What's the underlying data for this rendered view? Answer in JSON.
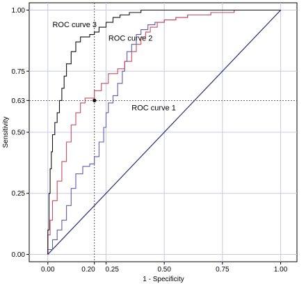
{
  "chart_data": {
    "type": "line",
    "xlabel": "1 - Specificity",
    "ylabel": "Sensitivity",
    "xlim": [
      -0.08,
      1.07
    ],
    "ylim": [
      -0.03,
      1.03
    ],
    "x_ticks": [
      {
        "value": 0.0,
        "label": "0.00"
      },
      {
        "value": 0.2,
        "label": "0.20"
      },
      {
        "value": 0.25,
        "label": "0.25"
      },
      {
        "value": 0.5,
        "label": "0.50"
      },
      {
        "value": 0.75,
        "label": "0.75"
      },
      {
        "value": 1.0,
        "label": "1.00"
      }
    ],
    "y_ticks": [
      {
        "value": 0.0,
        "label": "0.00"
      },
      {
        "value": 0.25,
        "label": "0.25"
      },
      {
        "value": 0.5,
        "label": "0.50"
      },
      {
        "value": 0.63,
        "label": "0.63"
      },
      {
        "value": 0.75,
        "label": "0.75"
      },
      {
        "value": 1.0,
        "label": "1.00"
      }
    ],
    "grid": true,
    "reference_point": {
      "x": 0.2,
      "y": 0.63
    },
    "series": [
      {
        "name": "ROC curve 1",
        "color": "#5b5bb5",
        "label_pos": {
          "x": 0.36,
          "y": 0.59
        },
        "points": [
          [
            0,
            0
          ],
          [
            0.02,
            0.02
          ],
          [
            0.04,
            0.06
          ],
          [
            0.06,
            0.1
          ],
          [
            0.08,
            0.14
          ],
          [
            0.1,
            0.2
          ],
          [
            0.12,
            0.27
          ],
          [
            0.15,
            0.33
          ],
          [
            0.18,
            0.36
          ],
          [
            0.2,
            0.37
          ],
          [
            0.22,
            0.4
          ],
          [
            0.24,
            0.46
          ],
          [
            0.25,
            0.52
          ],
          [
            0.26,
            0.58
          ],
          [
            0.28,
            0.62
          ],
          [
            0.3,
            0.65
          ],
          [
            0.32,
            0.7
          ],
          [
            0.33,
            0.75
          ],
          [
            0.34,
            0.79
          ],
          [
            0.36,
            0.83
          ],
          [
            0.38,
            0.86
          ],
          [
            0.4,
            0.9
          ],
          [
            0.43,
            0.92
          ],
          [
            0.46,
            0.94
          ],
          [
            0.5,
            0.95
          ],
          [
            0.55,
            0.96
          ],
          [
            0.6,
            0.97
          ],
          [
            0.7,
            0.98
          ],
          [
            0.8,
            0.99
          ],
          [
            0.9,
            1.0
          ],
          [
            1,
            1
          ]
        ]
      },
      {
        "name": "ROC curve 2",
        "color": "#c94a5c",
        "label_pos": {
          "x": 0.26,
          "y": 0.875
        },
        "points": [
          [
            0,
            0
          ],
          [
            0.01,
            0.08
          ],
          [
            0.02,
            0.14
          ],
          [
            0.04,
            0.22
          ],
          [
            0.06,
            0.3
          ],
          [
            0.08,
            0.38
          ],
          [
            0.1,
            0.46
          ],
          [
            0.12,
            0.53
          ],
          [
            0.14,
            0.58
          ],
          [
            0.16,
            0.62
          ],
          [
            0.2,
            0.64
          ],
          [
            0.23,
            0.67
          ],
          [
            0.26,
            0.7
          ],
          [
            0.3,
            0.74
          ],
          [
            0.33,
            0.76
          ],
          [
            0.36,
            0.79
          ],
          [
            0.38,
            0.83
          ],
          [
            0.4,
            0.86
          ],
          [
            0.42,
            0.89
          ],
          [
            0.44,
            0.91
          ],
          [
            0.47,
            0.93
          ],
          [
            0.5,
            0.95
          ],
          [
            0.55,
            0.96
          ],
          [
            0.6,
            0.97
          ],
          [
            0.7,
            0.98
          ],
          [
            0.8,
            0.99
          ],
          [
            0.9,
            1.0
          ],
          [
            1,
            1
          ]
        ]
      },
      {
        "name": "ROC curve 3",
        "color": "#111111",
        "label_pos": {
          "x": 0.02,
          "y": 0.93
        },
        "points": [
          [
            0,
            0
          ],
          [
            0.005,
            0.1
          ],
          [
            0.01,
            0.25
          ],
          [
            0.015,
            0.35
          ],
          [
            0.02,
            0.42
          ],
          [
            0.03,
            0.49
          ],
          [
            0.04,
            0.54
          ],
          [
            0.05,
            0.58
          ],
          [
            0.06,
            0.63
          ],
          [
            0.07,
            0.68
          ],
          [
            0.08,
            0.73
          ],
          [
            0.1,
            0.78
          ],
          [
            0.12,
            0.83
          ],
          [
            0.14,
            0.87
          ],
          [
            0.16,
            0.89
          ],
          [
            0.18,
            0.89
          ],
          [
            0.2,
            0.9
          ],
          [
            0.22,
            0.91
          ],
          [
            0.25,
            0.93
          ],
          [
            0.28,
            0.95
          ],
          [
            0.31,
            0.97
          ],
          [
            0.35,
            0.98
          ],
          [
            0.4,
            0.99
          ],
          [
            0.5,
            1.0
          ],
          [
            1,
            1
          ]
        ]
      }
    ]
  }
}
